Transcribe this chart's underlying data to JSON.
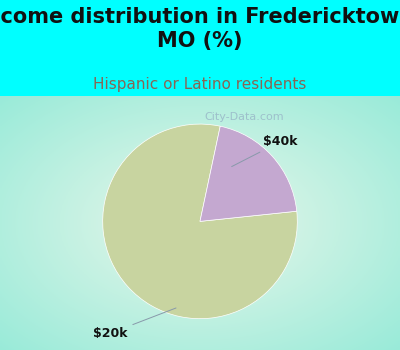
{
  "title": "Income distribution in Fredericktown,\nMO (%)",
  "subtitle": "Hispanic or Latino residents",
  "slices": [
    80,
    20
  ],
  "labels": [
    "$20k",
    "$40k"
  ],
  "colors": [
    "#c8d4a0",
    "#c4a8d0"
  ],
  "title_fontsize": 15,
  "subtitle_fontsize": 11,
  "subtitle_color": "#886655",
  "title_bg_color": "#00ffff",
  "annotation_color": "#111111",
  "annotation_fontsize": 9,
  "startangle": 78,
  "watermark_color": "#99b8c8",
  "watermark_fontsize": 8
}
